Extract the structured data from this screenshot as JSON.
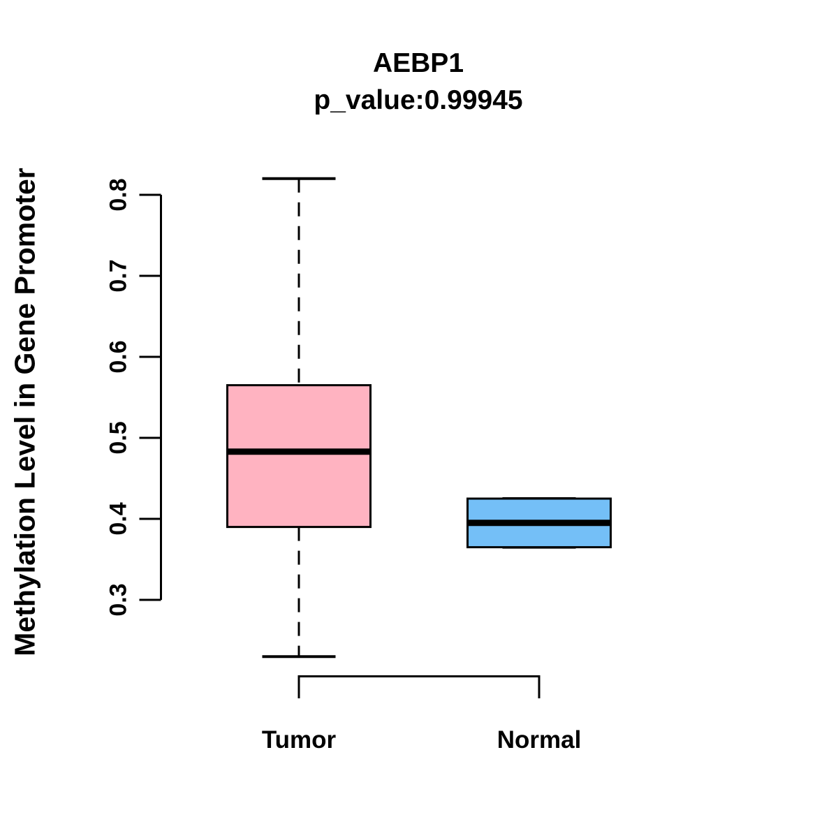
{
  "chart_data": {
    "type": "boxplot",
    "title": "AEBP1",
    "subtitle": "p_value:0.99945",
    "ylabel": "Methylation Level in Gene Promoter",
    "xlabel": "",
    "categories": [
      "Tumor",
      "Normal"
    ],
    "yticks": [
      0.3,
      0.4,
      0.5,
      0.6,
      0.7,
      0.8
    ],
    "ylim": [
      0.205,
      0.845
    ],
    "grid": false,
    "legend": "none",
    "line_color": "#000000",
    "series": [
      {
        "name": "Tumor",
        "box_color": "#FFB3C1",
        "whisker_low": 0.23,
        "q1": 0.39,
        "median": 0.483,
        "q3": 0.565,
        "whisker_high": 0.82
      },
      {
        "name": "Normal",
        "box_color": "#74BFF7",
        "whisker_low": 0.365,
        "q1": 0.365,
        "median": 0.395,
        "q3": 0.425,
        "whisker_high": 0.425
      }
    ]
  }
}
